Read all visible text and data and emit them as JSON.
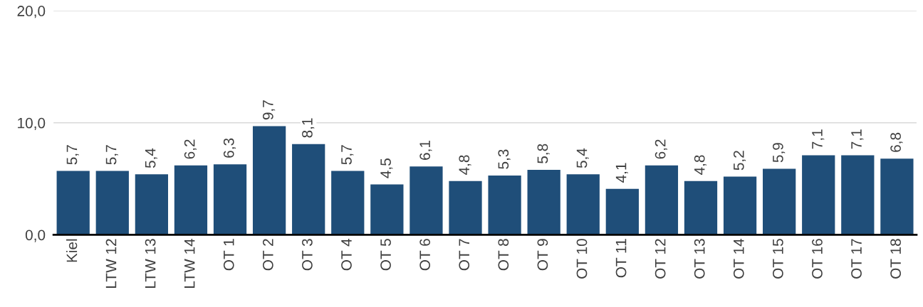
{
  "chart_data": {
    "type": "bar",
    "categories": [
      "Kiel",
      "LTW 12",
      "LTW 13",
      "LTW 14",
      "OT 1",
      "OT 2",
      "OT 3",
      "OT 4",
      "OT 5",
      "OT 6",
      "OT 7",
      "OT 8",
      "OT 9",
      "OT 10",
      "OT 11",
      "OT 12",
      "OT 13",
      "OT 14",
      "OT 15",
      "OT 16",
      "OT 17",
      "OT 18"
    ],
    "values": [
      5.7,
      5.7,
      5.4,
      6.2,
      6.3,
      9.7,
      8.1,
      5.7,
      4.5,
      6.1,
      4.8,
      5.3,
      5.8,
      5.4,
      4.1,
      6.2,
      4.8,
      5.2,
      5.9,
      7.1,
      7.1,
      6.8
    ],
    "value_labels": [
      "5,7",
      "5,7",
      "5,4",
      "6,2",
      "6,3",
      "9,7",
      "8,1",
      "5,7",
      "4,5",
      "6,1",
      "4,8",
      "5,3",
      "5,8",
      "5,4",
      "4,1",
      "6,2",
      "4,8",
      "5,2",
      "5,9",
      "7,1",
      "7,1",
      "6,8"
    ],
    "color": "#1f4e79",
    "ylim": [
      0,
      20
    ],
    "yticks": [
      {
        "value": 0,
        "label": "0,0"
      },
      {
        "value": 10,
        "label": "10,0"
      },
      {
        "value": 20,
        "label": "20,0"
      }
    ],
    "grid": "y"
  }
}
